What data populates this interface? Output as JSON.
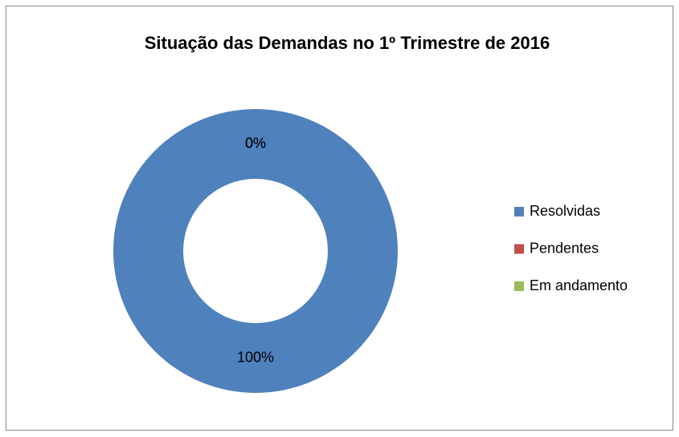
{
  "chart_data": {
    "type": "donut",
    "title": "Situação das Demandas no 1º Trimestre de 2016",
    "categories": [
      "Resolvidas",
      "Pendentes",
      "Em andamento"
    ],
    "values": [
      100,
      0,
      0
    ],
    "value_labels": [
      "100%",
      "0%",
      "0%"
    ],
    "colors": [
      "#4f81bd",
      "#c0504d",
      "#9bbb59"
    ],
    "legend": "right"
  }
}
